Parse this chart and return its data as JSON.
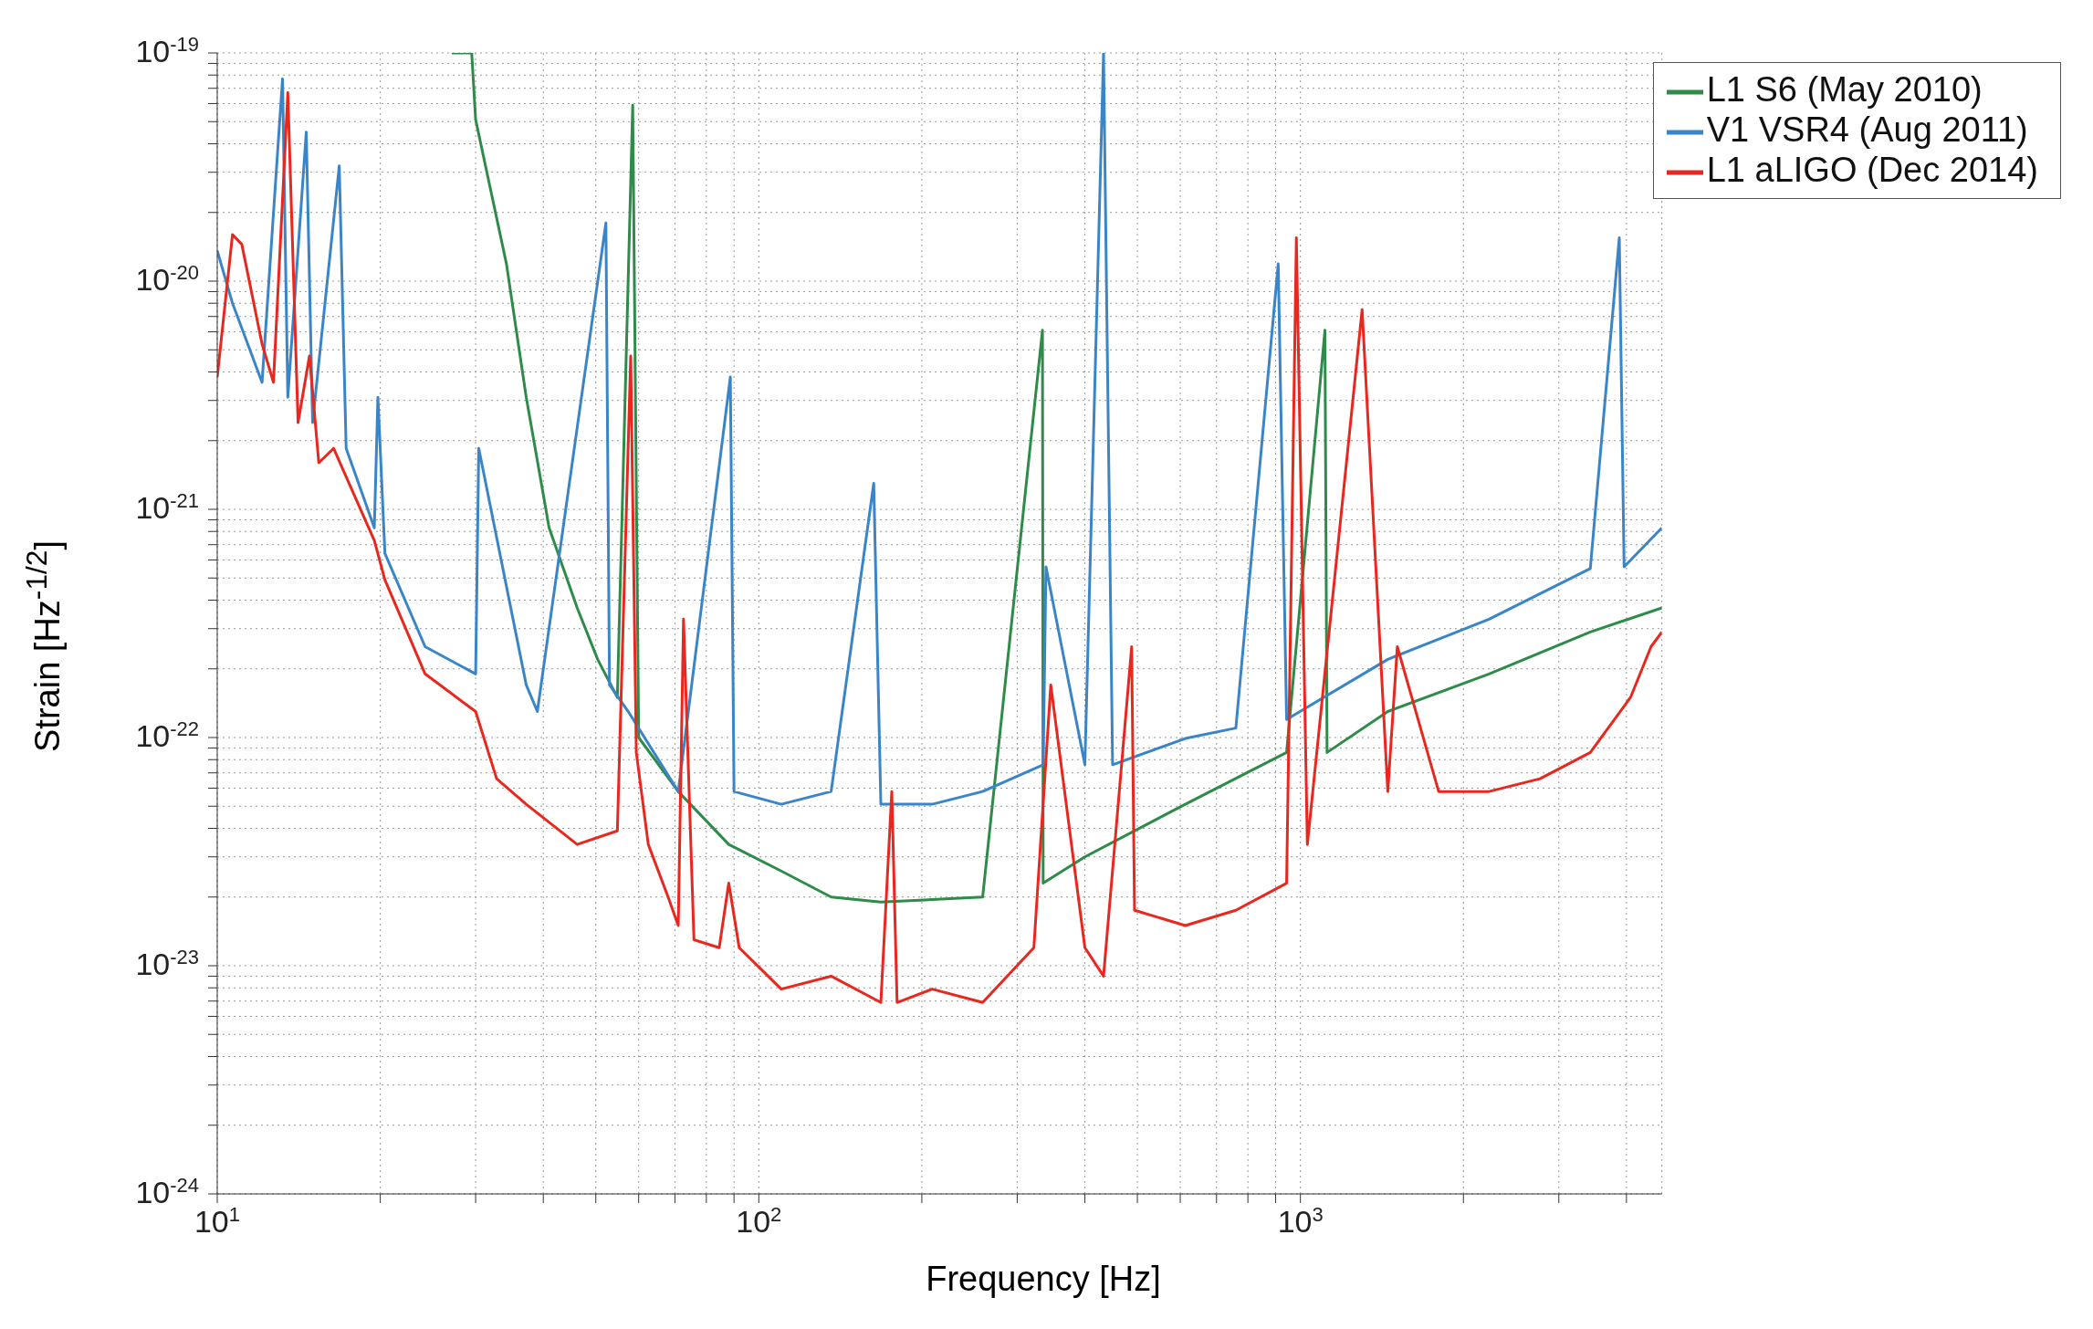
{
  "chart_data": {
    "type": "line",
    "xlabel": "Frequency [Hz]",
    "ylabel": "Strain [Hz$^{-1/2}$]",
    "log": "xy",
    "grid": true,
    "legend": "top right",
    "line_style": "solid",
    "marker": "none",
    "xlim": [
      10,
      4650
    ],
    "xticks": [
      {
        "value": 10,
        "label": "10$^{1}$"
      },
      {
        "value": 20,
        "label": null
      },
      {
        "value": 30,
        "label": null
      },
      {
        "value": 40,
        "label": null
      },
      {
        "value": 50,
        "label": null
      },
      {
        "value": 60,
        "label": null
      },
      {
        "value": 70,
        "label": null
      },
      {
        "value": 80,
        "label": null
      },
      {
        "value": 90,
        "label": null
      },
      {
        "value": 100,
        "label": "10$^{2}$"
      },
      {
        "value": 200,
        "label": null
      },
      {
        "value": 300,
        "label": null
      },
      {
        "value": 400,
        "label": null
      },
      {
        "value": 500,
        "label": null
      },
      {
        "value": 600,
        "label": null
      },
      {
        "value": 700,
        "label": null
      },
      {
        "value": 800,
        "label": null
      },
      {
        "value": 900,
        "label": null
      },
      {
        "value": 1000,
        "label": "10$^{3}$"
      },
      {
        "value": 2000,
        "label": null
      },
      {
        "value": 3000,
        "label": null
      },
      {
        "value": 4000,
        "label": null
      }
    ],
    "ylim": [
      1e-24,
      1e-19
    ],
    "yticks": [
      {
        "value": 1e-24,
        "label": "10$^{-24}$"
      },
      {
        "value": 2e-24,
        "label": null
      },
      {
        "value": 3e-24,
        "label": null
      },
      {
        "value": 4e-24,
        "label": null
      },
      {
        "value": 5e-24,
        "label": null
      },
      {
        "value": 6e-24,
        "label": null
      },
      {
        "value": 7e-24,
        "label": null
      },
      {
        "value": 8e-24,
        "label": null
      },
      {
        "value": 9e-24,
        "label": null
      },
      {
        "value": 1e-23,
        "label": "10$^{-23}$"
      },
      {
        "value": 2e-23,
        "label": null
      },
      {
        "value": 3e-23,
        "label": null
      },
      {
        "value": 4e-23,
        "label": null
      },
      {
        "value": 5e-23,
        "label": null
      },
      {
        "value": 6e-23,
        "label": null
      },
      {
        "value": 7e-23,
        "label": null
      },
      {
        "value": 8e-23,
        "label": null
      },
      {
        "value": 9e-23,
        "label": null
      },
      {
        "value": 1e-22,
        "label": "10$^{-22}$"
      },
      {
        "value": 2e-22,
        "label": null
      },
      {
        "value": 3e-22,
        "label": null
      },
      {
        "value": 4e-22,
        "label": null
      },
      {
        "value": 5e-22,
        "label": null
      },
      {
        "value": 6e-22,
        "label": null
      },
      {
        "value": 7e-22,
        "label": null
      },
      {
        "value": 8e-22,
        "label": null
      },
      {
        "value": 9e-22,
        "label": null
      },
      {
        "value": 1e-21,
        "label": "10$^{-21}$"
      },
      {
        "value": 2e-21,
        "label": null
      },
      {
        "value": 3e-21,
        "label": null
      },
      {
        "value": 4e-21,
        "label": null
      },
      {
        "value": 5e-21,
        "label": null
      },
      {
        "value": 6e-21,
        "label": null
      },
      {
        "value": 7e-21,
        "label": null
      },
      {
        "value": 8e-21,
        "label": null
      },
      {
        "value": 9e-21,
        "label": null
      },
      {
        "value": 1e-20,
        "label": "10$^{-20}$"
      },
      {
        "value": 2e-20,
        "label": null
      },
      {
        "value": 3e-20,
        "label": null
      },
      {
        "value": 4e-20,
        "label": null
      },
      {
        "value": 5e-20,
        "label": null
      },
      {
        "value": 6e-20,
        "label": null
      },
      {
        "value": 7e-20,
        "label": null
      },
      {
        "value": 8e-20,
        "label": null
      },
      {
        "value": 9e-20,
        "label": null
      },
      {
        "value": 1e-19,
        "label": "10$^{-19}$"
      }
    ],
    "series": [
      {
        "name": "L1 S6 (May 2010)",
        "color": "#2e8b4a",
        "x": [
          27.1,
          29.5,
          30,
          34.2,
          37.2,
          41,
          46.2,
          50.4,
          54.8,
          58.5,
          60,
          71,
          88,
          110,
          136,
          168,
          259,
          334,
          335,
          400,
          613,
          943,
          1110,
          1120,
          1450,
          2230,
          3430,
          4650
        ],
        "values": [
          1e-19,
          1e-19,
          5.1e-20,
          1.19e-20,
          3.1e-21,
          8.3e-22,
          3.7e-22,
          2.2e-22,
          1.5e-22,
          5.9e-20,
          1e-22,
          5.8e-23,
          3.4e-23,
          2.6e-23,
          2e-23,
          1.9e-23,
          2e-23,
          6.1e-21,
          2.3e-23,
          3e-23,
          5.1e-23,
          8.6e-23,
          6.1e-21,
          8.6e-23,
          1.3e-22,
          1.9e-22,
          2.9e-22,
          3.7e-22
        ]
      },
      {
        "name": "V1 VSR4 (Aug 2011)",
        "color": "#3a85c8",
        "x": [
          10,
          10.67,
          12.1,
          13.2,
          13.5,
          14.6,
          15,
          16.8,
          17.3,
          19.5,
          19.8,
          20.4,
          24.2,
          30,
          30.4,
          37.2,
          39,
          52.2,
          53,
          57.4,
          71,
          88.6,
          90,
          110,
          136,
          163,
          168,
          209,
          259,
          335,
          339,
          400,
          433,
          450,
          613,
          760,
          910,
          943,
          1450,
          2230,
          3430,
          3880,
          3960,
          4650
        ],
        "values": [
          1.36e-20,
          8e-21,
          3.6e-21,
          7.7e-20,
          3.1e-21,
          4.5e-20,
          2.4e-21,
          3.2e-20,
          1.85e-21,
          8.3e-22,
          3.1e-21,
          6.4e-22,
          2.5e-22,
          1.9e-22,
          1.85e-21,
          1.7e-22,
          1.3e-22,
          1.8e-20,
          1.7e-22,
          1.3e-22,
          5.8e-23,
          3.8e-21,
          5.8e-23,
          5.1e-23,
          5.8e-23,
          1.3e-21,
          5.1e-23,
          5.1e-23,
          5.8e-23,
          7.6e-23,
          5.6e-22,
          7.6e-23,
          1e-19,
          7.6e-23,
          9.9e-23,
          1.1e-22,
          1.19e-20,
          1.2e-22,
          2.2e-22,
          3.3e-22,
          5.5e-22,
          1.55e-20,
          5.6e-22,
          8.3e-22
        ]
      },
      {
        "name": "L1 aLIGO (Dec 2014)",
        "color": "#e8281e",
        "x": [
          10,
          10.67,
          11.1,
          12.1,
          12.7,
          13.5,
          14.1,
          14.8,
          15.4,
          16.4,
          19.5,
          20.4,
          24.2,
          30,
          32.8,
          37.2,
          46.2,
          54.8,
          58,
          59.4,
          62.5,
          68,
          71,
          72.6,
          75.9,
          84.5,
          88,
          92,
          110,
          136,
          168,
          176,
          180,
          209,
          259,
          322,
          346,
          400,
          433,
          488,
          494,
          613,
          760,
          943,
          983,
          1030,
          1300,
          1450,
          1510,
          1800,
          2230,
          2770,
          3430,
          4070,
          4440,
          4650
        ],
        "values": [
          3.8e-21,
          1.6e-20,
          1.45e-20,
          5.3e-21,
          3.6e-21,
          6.7e-20,
          2.4e-21,
          4.7e-21,
          1.6e-21,
          1.85e-21,
          7.3e-22,
          4.9e-22,
          1.9e-22,
          1.3e-22,
          6.6e-23,
          5.1e-23,
          3.4e-23,
          3.9e-23,
          4.7e-21,
          8.6e-23,
          3.4e-23,
          2e-23,
          1.5e-23,
          3.3e-22,
          1.3e-23,
          1.2e-23,
          2.3e-23,
          1.2e-23,
          7.9e-24,
          9e-24,
          6.9e-24,
          5.8e-23,
          6.9e-24,
          7.9e-24,
          6.9e-24,
          1.2e-23,
          1.7e-22,
          1.2e-23,
          9e-24,
          2.5e-22,
          1.75e-23,
          1.5e-23,
          1.75e-23,
          2.3e-23,
          1.55e-20,
          3.4e-23,
          7.5e-21,
          5.8e-23,
          2.5e-22,
          5.8e-23,
          5.8e-23,
          6.6e-23,
          8.6e-23,
          1.5e-22,
          2.5e-22,
          2.9e-22
        ]
      }
    ]
  }
}
